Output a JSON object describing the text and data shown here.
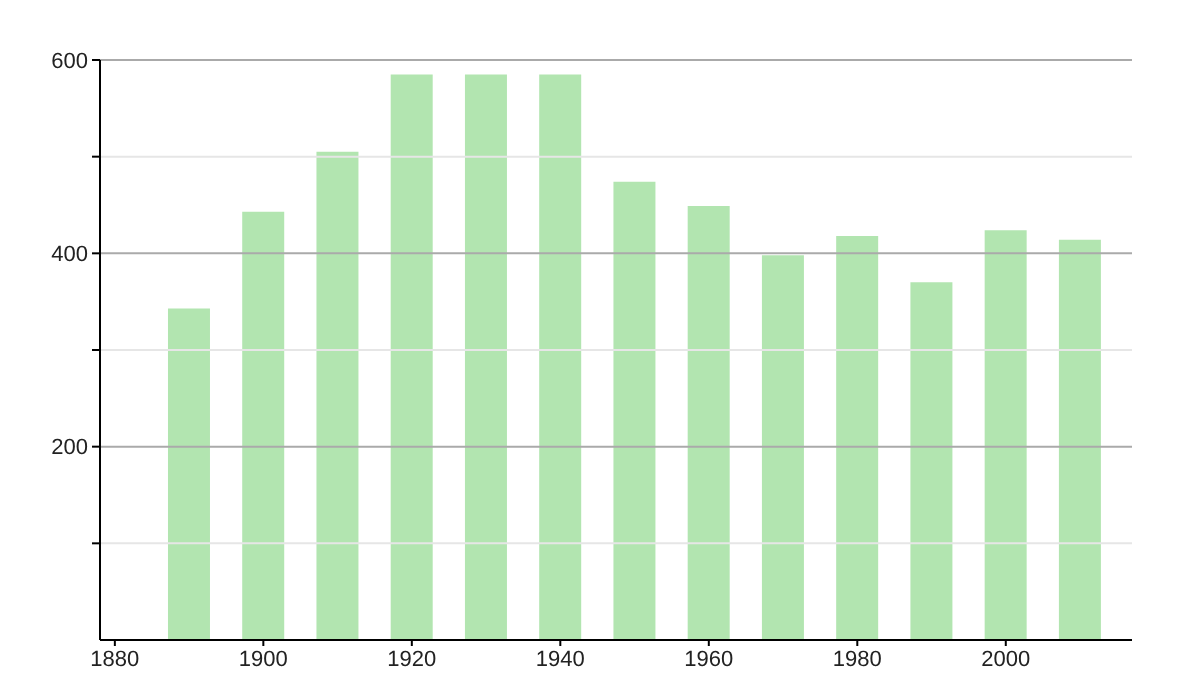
{
  "chart_data": {
    "type": "bar",
    "x": [
      1890,
      1900,
      1910,
      1920,
      1930,
      1940,
      1950,
      1960,
      1970,
      1980,
      1990,
      2000,
      2010
    ],
    "values": [
      343,
      443,
      505,
      585,
      585,
      585,
      474,
      449,
      398,
      418,
      370,
      424,
      414
    ],
    "color": "#b2e5b0",
    "xlim": [
      1878,
      2017
    ],
    "xticks": [
      1880,
      1900,
      1920,
      1940,
      1960,
      1980,
      2000
    ],
    "ylim": [
      0,
      600
    ],
    "yticks": [
      {
        "value": 100,
        "label": null
      },
      200,
      {
        "value": 300,
        "label": null
      },
      400,
      {
        "value": 500,
        "label": null
      },
      600
    ],
    "grid": "y"
  }
}
